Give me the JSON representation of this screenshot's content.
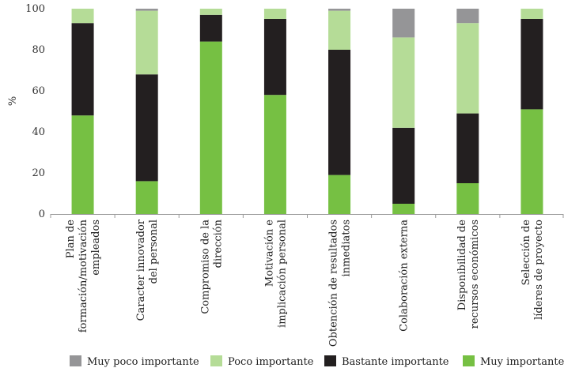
{
  "chart_data": {
    "type": "bar",
    "stacked": true,
    "title": "",
    "xlabel": "",
    "ylabel": "%",
    "ylim": [
      0,
      100
    ],
    "yticks": [
      0,
      20,
      40,
      60,
      80,
      100
    ],
    "grid": false,
    "legend_position": "bottom",
    "categories": [
      [
        "Plan de",
        "formación/motivación",
        "empleados"
      ],
      [
        "Caracter innovador",
        "del personal"
      ],
      [
        "Compromiso de la",
        "dirección"
      ],
      [
        "Motivación e",
        "implicación personal"
      ],
      [
        "Obtención de resultados",
        "inmediatos"
      ],
      [
        "Colaboración externa"
      ],
      [
        "Disponibilidad de",
        "recursos económicos"
      ],
      [
        "Selección de",
        "líderes de proyecto"
      ]
    ],
    "series": [
      {
        "name": "Muy importante",
        "color": "#76c043",
        "values": [
          48,
          16,
          84,
          58,
          19,
          5,
          15,
          51
        ]
      },
      {
        "name": "Bastante importante",
        "color": "#231f20",
        "values": [
          45,
          52,
          13,
          37,
          61,
          37,
          34,
          44
        ]
      },
      {
        "name": "Poco importante",
        "color": "#b5dc97",
        "values": [
          7,
          31,
          3,
          5,
          19,
          44,
          44,
          5
        ]
      },
      {
        "name": "Muy poco importante",
        "color": "#959597",
        "values": [
          0,
          1,
          0,
          0,
          1,
          14,
          7,
          0
        ]
      }
    ],
    "legend_order": [
      "Muy poco importante",
      "Poco importante",
      "Bastante importante",
      "Muy importante"
    ]
  }
}
